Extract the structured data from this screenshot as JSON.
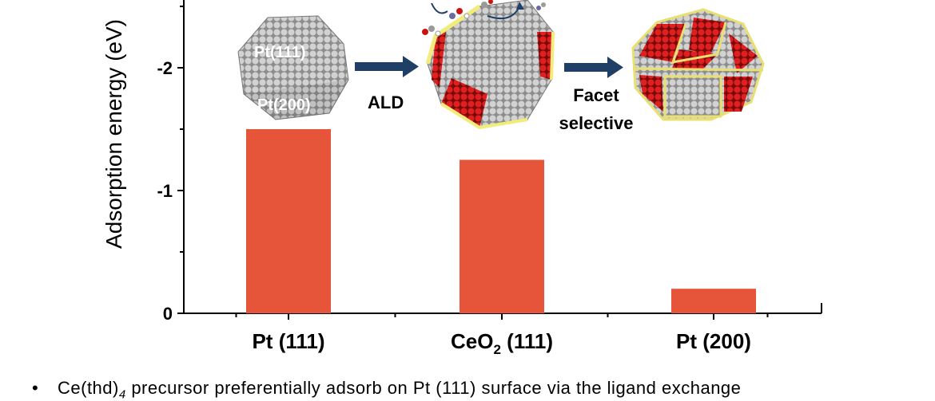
{
  "chart_data": {
    "type": "bar",
    "ylabel": "Adsorption energy (eV)",
    "categories": [
      {
        "main": "Pt (111)",
        "sub": "",
        "rest": ""
      },
      {
        "main": "CeO",
        "sub": "2",
        "rest": " (111)"
      },
      {
        "main": "Pt (200)",
        "sub": "",
        "rest": ""
      }
    ],
    "values": [
      -1.5,
      -1.25,
      -0.2
    ],
    "yticks": [
      {
        "value": 0,
        "label": "0"
      },
      {
        "value": -1,
        "label": "-1"
      },
      {
        "value": -2,
        "label": "-2"
      }
    ],
    "ylim": [
      0,
      -2.6
    ],
    "bar_color": "#e6543a",
    "grid": false
  },
  "inset": {
    "label_pt111": "Pt(111)",
    "label_pt200": "Pt(200)",
    "step1": "ALD",
    "step2_line1": "Facet",
    "step2_line2": "selective",
    "arrow_color": "#1f3f66",
    "sphere_grey": "#b0b0b0",
    "sphere_red": "#cc1111",
    "sphere_yellow": "#f2ec7a"
  },
  "caption": {
    "bullet": "•",
    "text_before": "Ce(thd)",
    "subscript": "4",
    "text_after": " precursor preferentially adsorb on Pt (111) surface via the ligand exchange"
  }
}
